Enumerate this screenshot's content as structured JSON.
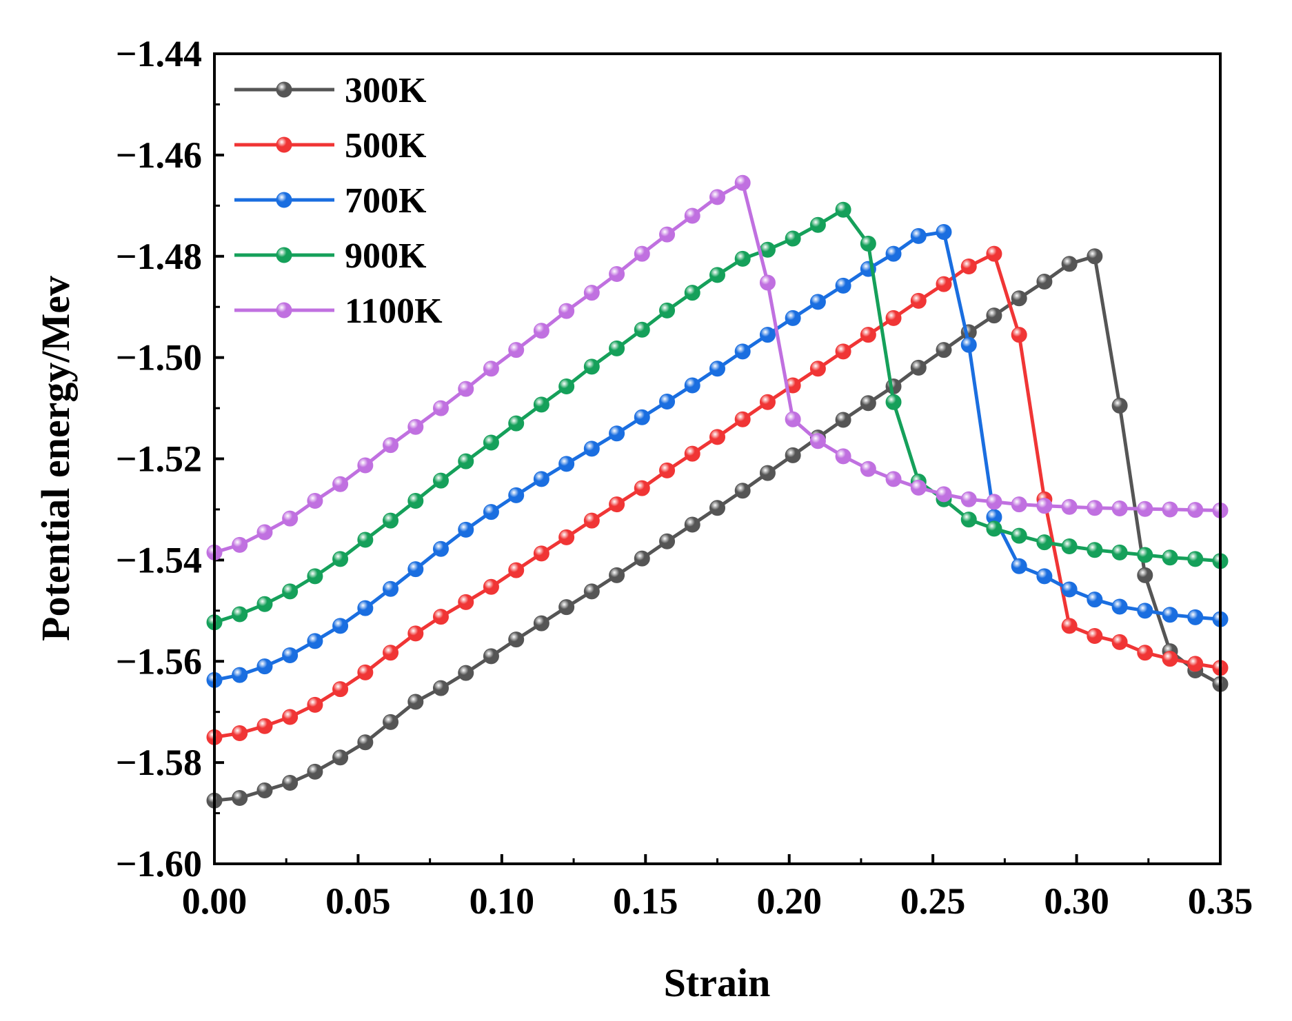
{
  "chart_data": {
    "type": "line",
    "xlabel": "Strain",
    "ylabel": "Potential energy/Mev",
    "xlim": [
      0.0,
      0.35
    ],
    "ylim": [
      -1.6,
      -1.44
    ],
    "x_ticks": [
      0.0,
      0.05,
      0.1,
      0.15,
      0.2,
      0.25,
      0.3,
      0.35
    ],
    "x_tick_labels": [
      "0.00",
      "0.05",
      "0.10",
      "0.15",
      "0.20",
      "0.25",
      "0.30",
      "0.35"
    ],
    "y_ticks": [
      -1.6,
      -1.58,
      -1.56,
      -1.54,
      -1.52,
      -1.5,
      -1.48,
      -1.46,
      -1.44
    ],
    "y_tick_labels": [
      "−1.60",
      "−1.58",
      "−1.56",
      "−1.54",
      "−1.52",
      "−1.50",
      "−1.48",
      "−1.46",
      "−1.44"
    ],
    "legend_position": "top-left",
    "series": [
      {
        "name": "300K",
        "color": "#555555",
        "x": [
          0.0,
          0.0088,
          0.0175,
          0.0263,
          0.035,
          0.0438,
          0.0525,
          0.0613,
          0.07,
          0.0788,
          0.0875,
          0.0963,
          0.105,
          0.1138,
          0.1225,
          0.1313,
          0.14,
          0.1488,
          0.1575,
          0.1663,
          0.175,
          0.1838,
          0.1925,
          0.2013,
          0.21,
          0.2188,
          0.2275,
          0.2363,
          0.245,
          0.2538,
          0.2625,
          0.2713,
          0.28,
          0.2888,
          0.2975,
          0.3063,
          0.315,
          0.3238,
          0.3325,
          0.3413,
          0.35
        ],
        "y": [
          -1.5875,
          -1.587,
          -1.5855,
          -1.584,
          -1.5818,
          -1.579,
          -1.576,
          -1.572,
          -1.568,
          -1.5653,
          -1.5623,
          -1.559,
          -1.5557,
          -1.5525,
          -1.5493,
          -1.5462,
          -1.543,
          -1.5397,
          -1.5363,
          -1.533,
          -1.5297,
          -1.5263,
          -1.5228,
          -1.5193,
          -1.5158,
          -1.5123,
          -1.509,
          -1.5057,
          -1.502,
          -1.4985,
          -1.495,
          -1.4917,
          -1.4883,
          -1.485,
          -1.4815,
          -1.48,
          -1.5095,
          -1.543,
          -1.558,
          -1.5618,
          -1.5645
        ]
      },
      {
        "name": "500K",
        "color": "#f03535",
        "x": [
          0.0,
          0.0088,
          0.0175,
          0.0263,
          0.035,
          0.0438,
          0.0525,
          0.0613,
          0.07,
          0.0788,
          0.0875,
          0.0963,
          0.105,
          0.1138,
          0.1225,
          0.1313,
          0.14,
          0.1488,
          0.1575,
          0.1663,
          0.175,
          0.1838,
          0.1925,
          0.2013,
          0.21,
          0.2188,
          0.2275,
          0.2363,
          0.245,
          0.2538,
          0.2625,
          0.2713,
          0.28,
          0.2888,
          0.2975,
          0.3063,
          0.315,
          0.3238,
          0.3325,
          0.3413,
          0.35
        ],
        "y": [
          -1.575,
          -1.5742,
          -1.5728,
          -1.571,
          -1.5686,
          -1.5655,
          -1.5622,
          -1.5583,
          -1.5545,
          -1.5512,
          -1.5483,
          -1.5453,
          -1.542,
          -1.5387,
          -1.5355,
          -1.5322,
          -1.529,
          -1.5258,
          -1.5223,
          -1.519,
          -1.5157,
          -1.5122,
          -1.5088,
          -1.5055,
          -1.5022,
          -1.4988,
          -1.4955,
          -1.4922,
          -1.4888,
          -1.4855,
          -1.482,
          -1.4795,
          -1.4955,
          -1.528,
          -1.553,
          -1.555,
          -1.5562,
          -1.5583,
          -1.5595,
          -1.5605,
          -1.5613
        ]
      },
      {
        "name": "700K",
        "color": "#1a6ee0",
        "x": [
          0.0,
          0.0088,
          0.0175,
          0.0263,
          0.035,
          0.0438,
          0.0525,
          0.0613,
          0.07,
          0.0788,
          0.0875,
          0.0963,
          0.105,
          0.1138,
          0.1225,
          0.1313,
          0.14,
          0.1488,
          0.1575,
          0.1663,
          0.175,
          0.1838,
          0.1925,
          0.2013,
          0.21,
          0.2188,
          0.2275,
          0.2363,
          0.245,
          0.2538,
          0.2625,
          0.2713,
          0.28,
          0.2888,
          0.2975,
          0.3063,
          0.315,
          0.3238,
          0.3325,
          0.3413,
          0.35
        ],
        "y": [
          -1.5637,
          -1.5627,
          -1.561,
          -1.5588,
          -1.556,
          -1.553,
          -1.5495,
          -1.5457,
          -1.5418,
          -1.5378,
          -1.534,
          -1.5305,
          -1.5272,
          -1.524,
          -1.521,
          -1.518,
          -1.515,
          -1.5118,
          -1.5087,
          -1.5055,
          -1.5022,
          -1.4988,
          -1.4955,
          -1.4922,
          -1.489,
          -1.4858,
          -1.4825,
          -1.4795,
          -1.476,
          -1.4752,
          -1.4975,
          -1.5315,
          -1.5412,
          -1.5432,
          -1.5458,
          -1.5478,
          -1.5492,
          -1.55,
          -1.5508,
          -1.5513,
          -1.5517
        ]
      },
      {
        "name": "900K",
        "color": "#15a05a",
        "x": [
          0.0,
          0.0088,
          0.0175,
          0.0263,
          0.035,
          0.0438,
          0.0525,
          0.0613,
          0.07,
          0.0788,
          0.0875,
          0.0963,
          0.105,
          0.1138,
          0.1225,
          0.1313,
          0.14,
          0.1488,
          0.1575,
          0.1663,
          0.175,
          0.1838,
          0.1925,
          0.2013,
          0.21,
          0.2188,
          0.2275,
          0.2363,
          0.245,
          0.2538,
          0.2625,
          0.2713,
          0.28,
          0.2888,
          0.2975,
          0.3063,
          0.315,
          0.3238,
          0.3325,
          0.3413,
          0.35
        ],
        "y": [
          -1.5523,
          -1.5507,
          -1.5487,
          -1.5462,
          -1.5432,
          -1.5398,
          -1.536,
          -1.5322,
          -1.5283,
          -1.5243,
          -1.5205,
          -1.5168,
          -1.513,
          -1.5093,
          -1.5057,
          -1.5018,
          -1.4982,
          -1.4945,
          -1.4907,
          -1.4872,
          -1.4837,
          -1.4805,
          -1.4787,
          -1.4765,
          -1.4738,
          -1.4708,
          -1.4775,
          -1.5088,
          -1.5245,
          -1.528,
          -1.532,
          -1.5338,
          -1.5352,
          -1.5365,
          -1.5373,
          -1.538,
          -1.5385,
          -1.539,
          -1.5395,
          -1.5398,
          -1.5402
        ]
      },
      {
        "name": "1100K",
        "color": "#c070e0",
        "x": [
          0.0,
          0.0088,
          0.0175,
          0.0263,
          0.035,
          0.0438,
          0.0525,
          0.0613,
          0.07,
          0.0788,
          0.0875,
          0.0963,
          0.105,
          0.1138,
          0.1225,
          0.1313,
          0.14,
          0.1488,
          0.1575,
          0.1663,
          0.175,
          0.1838,
          0.1925,
          0.2013,
          0.21,
          0.2188,
          0.2275,
          0.2363,
          0.245,
          0.2538,
          0.2625,
          0.2713,
          0.28,
          0.2888,
          0.2975,
          0.3063,
          0.315,
          0.3238,
          0.3325,
          0.3413,
          0.35
        ],
        "y": [
          -1.5385,
          -1.537,
          -1.5345,
          -1.5318,
          -1.5283,
          -1.525,
          -1.5213,
          -1.5173,
          -1.5137,
          -1.51,
          -1.5062,
          -1.5022,
          -1.4985,
          -1.4947,
          -1.4908,
          -1.4872,
          -1.4835,
          -1.4795,
          -1.4757,
          -1.472,
          -1.4683,
          -1.4655,
          -1.4852,
          -1.5122,
          -1.5165,
          -1.5195,
          -1.522,
          -1.524,
          -1.5257,
          -1.527,
          -1.528,
          -1.5285,
          -1.529,
          -1.5293,
          -1.5295,
          -1.5297,
          -1.5298,
          -1.5299,
          -1.53,
          -1.5301,
          -1.5302
        ]
      }
    ]
  }
}
